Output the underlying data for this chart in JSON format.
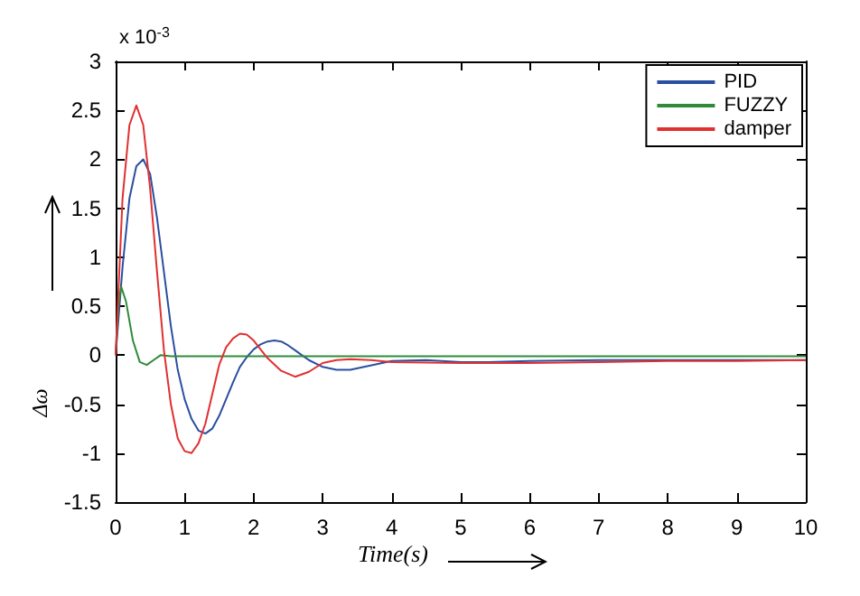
{
  "chart_data": {
    "type": "line",
    "xlabel": "Time(s)",
    "ylabel": "Δω",
    "annotations": [
      "x 10$^{-3}$"
    ],
    "xlim": [
      0,
      10
    ],
    "xticks": [
      0,
      1,
      2,
      3,
      4,
      5,
      6,
      7,
      8,
      9,
      10
    ],
    "ylim": [
      -1.5,
      3
    ],
    "yticks": [
      -1.5,
      -1,
      -0.5,
      0,
      0.5,
      1,
      1.5,
      2,
      2.5,
      3
    ],
    "grid": false,
    "legend": "top right",
    "marker": "none",
    "line_style": "solid",
    "series": [
      {
        "name": "PID",
        "color": "#2a4fa0",
        "x": [
          0,
          0.1,
          0.2,
          0.3,
          0.4,
          0.5,
          0.6,
          0.7,
          0.8,
          0.9,
          1.0,
          1.1,
          1.2,
          1.3,
          1.4,
          1.5,
          1.6,
          1.7,
          1.8,
          1.9,
          2.0,
          2.1,
          2.2,
          2.3,
          2.4,
          2.5,
          2.6,
          2.7,
          2.8,
          3.0,
          3.2,
          3.4,
          3.6,
          3.8,
          4.0,
          4.5,
          5,
          5.4,
          6,
          7,
          8,
          9,
          10
        ],
        "values": [
          0,
          0.9,
          1.6,
          1.93,
          2.0,
          1.85,
          1.4,
          0.85,
          0.3,
          -0.15,
          -0.45,
          -0.65,
          -0.77,
          -0.8,
          -0.75,
          -0.62,
          -0.45,
          -0.28,
          -0.12,
          -0.02,
          0.06,
          0.11,
          0.14,
          0.15,
          0.14,
          0.1,
          0.05,
          0,
          -0.05,
          -0.12,
          -0.15,
          -0.15,
          -0.12,
          -0.09,
          -0.06,
          -0.05,
          -0.07,
          -0.07,
          -0.06,
          -0.05,
          -0.05,
          -0.05,
          -0.05
        ]
      },
      {
        "name": "FUZZY",
        "color": "#2e8b3a",
        "x": [
          0,
          0.04,
          0.08,
          0.15,
          0.25,
          0.35,
          0.45,
          0.55,
          0.65,
          0.8,
          1,
          10
        ],
        "values": [
          0,
          0.5,
          0.7,
          0.55,
          0.15,
          -0.07,
          -0.1,
          -0.05,
          0,
          -0.01,
          -0.01,
          -0.01
        ]
      },
      {
        "name": "damper",
        "color": "#e03030",
        "x": [
          0,
          0.05,
          0.1,
          0.2,
          0.3,
          0.4,
          0.5,
          0.6,
          0.7,
          0.8,
          0.9,
          1.0,
          1.1,
          1.2,
          1.3,
          1.4,
          1.5,
          1.6,
          1.7,
          1.8,
          1.9,
          2.0,
          2.1,
          2.2,
          2.4,
          2.6,
          2.8,
          3.0,
          3.2,
          3.4,
          3.7,
          4,
          5,
          6,
          7,
          8,
          9,
          10
        ],
        "values": [
          0,
          0.8,
          1.6,
          2.35,
          2.55,
          2.35,
          1.7,
          0.85,
          0.05,
          -0.5,
          -0.85,
          -0.98,
          -1.0,
          -0.9,
          -0.7,
          -0.4,
          -0.1,
          0.08,
          0.17,
          0.22,
          0.21,
          0.15,
          0.06,
          -0.03,
          -0.16,
          -0.22,
          -0.17,
          -0.08,
          -0.05,
          -0.04,
          -0.05,
          -0.07,
          -0.08,
          -0.08,
          -0.07,
          -0.06,
          -0.06,
          -0.05
        ]
      }
    ]
  }
}
